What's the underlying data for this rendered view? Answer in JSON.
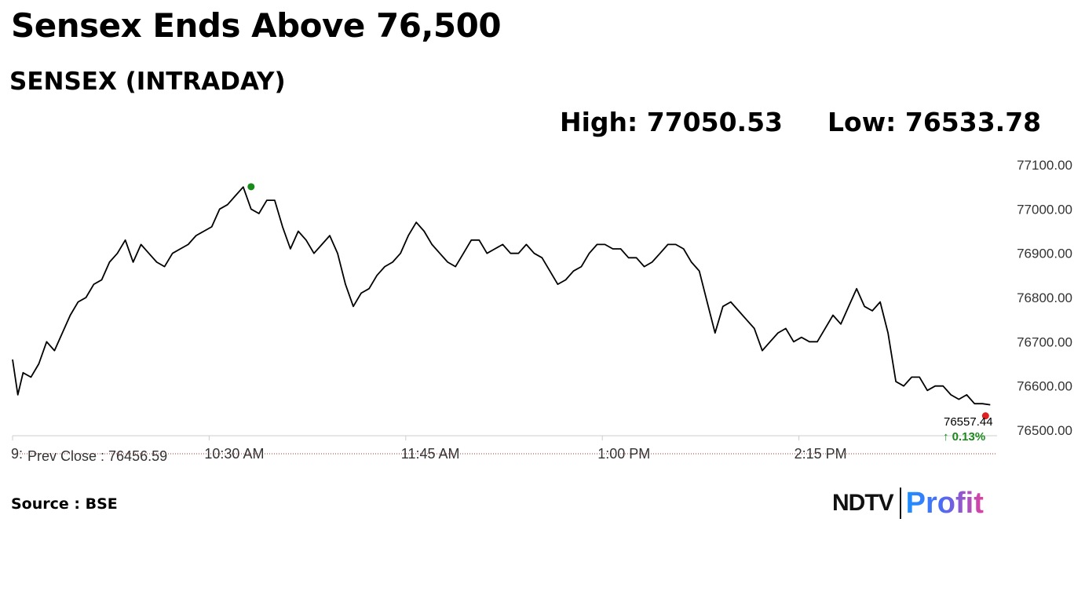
{
  "title": "Sensex Ends Above 76,500",
  "subtitle": "SENSEX (INTRADAY)",
  "high_label": "High: 77050.53",
  "low_label": "Low: 76533.78",
  "source": "Source : BSE",
  "logo": {
    "left": "NDTV",
    "right": "Profit"
  },
  "colors": {
    "line": "#000000",
    "high_dot": "#1a8a1a",
    "last_dot": "#e02020",
    "change": "#1a8a1a",
    "prev_close_line": "#b03030",
    "axis": "#cccccc"
  },
  "chart_data": {
    "type": "line",
    "title": "SENSEX (INTRADAY)",
    "ylim": [
      76500,
      77100
    ],
    "y_ticks": [
      "77100.00",
      "77000.00",
      "76900.00",
      "76800.00",
      "76700.00",
      "76600.00",
      "76500.00"
    ],
    "y_tick_values": [
      77100,
      77000,
      76900,
      76800,
      76700,
      76600,
      76500
    ],
    "x_ticks": [
      {
        "t": "09:15",
        "label": "9:"
      },
      {
        "t": "10:30",
        "label": "10:30 AM"
      },
      {
        "t": "11:45",
        "label": "11:45 AM"
      },
      {
        "t": "13:00",
        "label": "1:00 PM"
      },
      {
        "t": "14:15",
        "label": "2:15 PM"
      }
    ],
    "x_range": [
      "09:15",
      "15:30"
    ],
    "prev_close_label": "Prev Close : 76456.59",
    "prev_close": 76456.59,
    "last_value_label": "76557.44",
    "change_label": "↑ 0.13%",
    "high_point": {
      "t": "10:46",
      "v": 77050.53
    },
    "last_point": {
      "t": "15:28",
      "v": 76557.44
    },
    "series": [
      {
        "t": [
          "09:15",
          "09:17",
          "09:19",
          "09:22",
          "09:25",
          "09:28",
          "09:31",
          "09:34",
          "09:37",
          "09:40",
          "09:43",
          "09:46",
          "09:49",
          "09:52",
          "09:55",
          "09:58",
          "10:01",
          "10:04",
          "10:07",
          "10:10",
          "10:13",
          "10:16",
          "10:19",
          "10:22",
          "10:25",
          "10:28",
          "10:31",
          "10:34",
          "10:37",
          "10:40",
          "10:43",
          "10:46",
          "10:49",
          "10:52",
          "10:55",
          "10:58",
          "11:01",
          "11:04",
          "11:07",
          "11:10",
          "11:13",
          "11:16",
          "11:19",
          "11:22",
          "11:25",
          "11:28",
          "11:31",
          "11:34",
          "11:37",
          "11:40",
          "11:43",
          "11:46",
          "11:49",
          "11:52",
          "11:55",
          "11:58",
          "12:01",
          "12:04",
          "12:07",
          "12:10",
          "12:13",
          "12:16",
          "12:19",
          "12:22",
          "12:25",
          "12:28",
          "12:31",
          "12:34",
          "12:37",
          "12:40",
          "12:43",
          "12:46",
          "12:49",
          "12:52",
          "12:55",
          "12:58",
          "13:01",
          "13:04",
          "13:07",
          "13:10",
          "13:13",
          "13:16",
          "13:19",
          "13:22",
          "13:25",
          "13:28",
          "13:31",
          "13:34",
          "13:37",
          "13:40",
          "13:43",
          "13:46",
          "13:49",
          "13:52",
          "13:55",
          "13:58",
          "14:01",
          "14:04",
          "14:07",
          "14:10",
          "14:13",
          "14:16",
          "14:19",
          "14:22",
          "14:25",
          "14:28",
          "14:31",
          "14:34",
          "14:37",
          "14:40",
          "14:43",
          "14:46",
          "14:49",
          "14:52",
          "14:55",
          "14:58",
          "15:01",
          "15:04",
          "15:07",
          "15:10",
          "15:13",
          "15:16",
          "15:19",
          "15:22",
          "15:25",
          "15:28"
        ],
        "values": [
          76660,
          76580,
          76630,
          76620,
          76650,
          76700,
          76680,
          76720,
          76760,
          76790,
          76800,
          76830,
          76840,
          76880,
          76900,
          76930,
          76880,
          76920,
          76900,
          76880,
          76870,
          76900,
          76910,
          76920,
          76940,
          76950,
          76960,
          77000,
          77010,
          77030,
          77050,
          77000,
          76990,
          77020,
          77020,
          76960,
          76910,
          76950,
          76930,
          76900,
          76920,
          76940,
          76900,
          76830,
          76780,
          76810,
          76820,
          76850,
          76870,
          76880,
          76900,
          76940,
          76970,
          76950,
          76920,
          76900,
          76880,
          76870,
          76900,
          76930,
          76930,
          76900,
          76910,
          76920,
          76900,
          76900,
          76920,
          76900,
          76890,
          76860,
          76830,
          76840,
          76860,
          76870,
          76900,
          76920,
          76920,
          76910,
          76910,
          76890,
          76890,
          76870,
          76880,
          76900,
          76920,
          76920,
          76910,
          76880,
          76860,
          76790,
          76720,
          76780,
          76790,
          76770,
          76750,
          76730,
          76680,
          76700,
          76720,
          76730,
          76700,
          76710,
          76700,
          76700,
          76730,
          76760,
          76740,
          76780,
          76820,
          76780,
          76770,
          76790,
          76720,
          76610,
          76600,
          76620,
          76620,
          76590,
          76600,
          76600,
          76580,
          76570,
          76580,
          76560,
          76560,
          76557.44
        ]
      }
    ]
  }
}
